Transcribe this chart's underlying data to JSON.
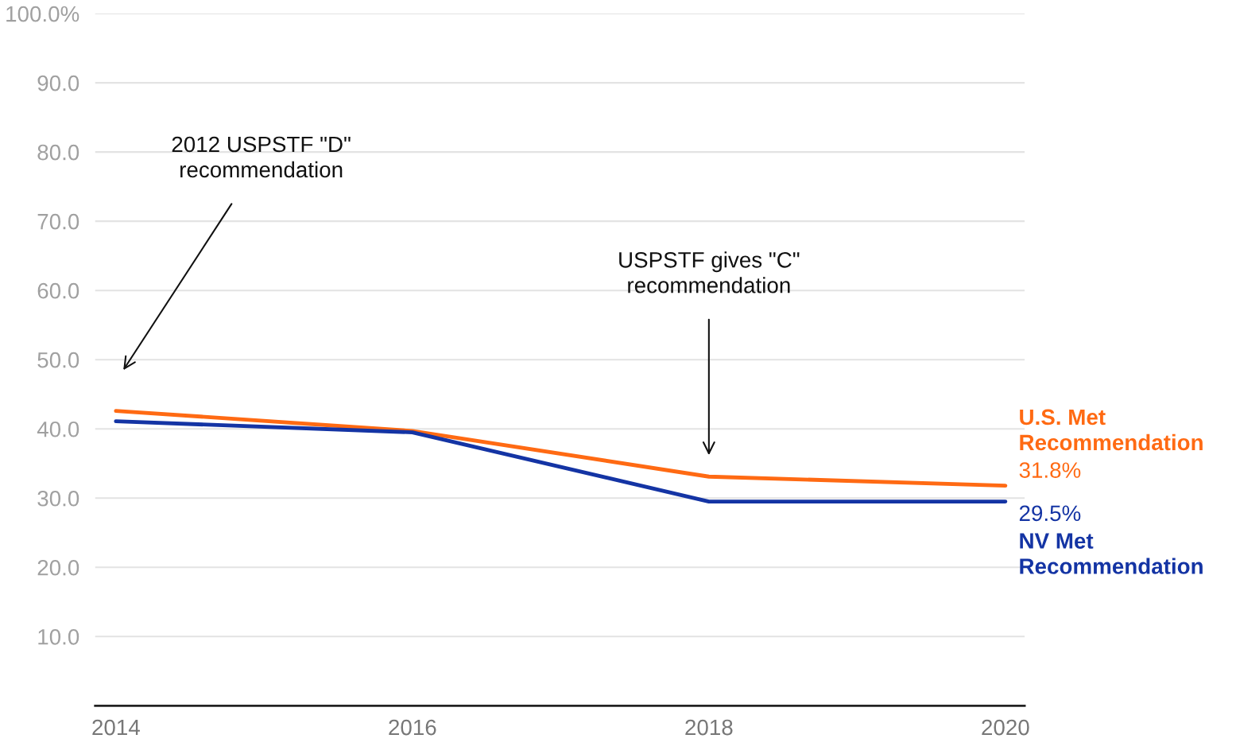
{
  "chart_data": {
    "type": "line",
    "x": [
      2014,
      2016,
      2018,
      2020
    ],
    "series": [
      {
        "name": "U.S. Met\nRecommendation",
        "color": "#ff6a13",
        "values": [
          42.6,
          39.7,
          33.1,
          31.8
        ],
        "value_labels": [
          null,
          null,
          null,
          "31.8%"
        ]
      },
      {
        "name": "NV Met\nRecommendation",
        "color": "#1434a4",
        "values": [
          41.1,
          39.5,
          29.5,
          29.5
        ],
        "value_labels": [
          null,
          null,
          null,
          "29.5%"
        ]
      }
    ],
    "ylim": [
      0,
      100
    ],
    "yticks": [
      {
        "value": 10,
        "label": "10.0"
      },
      {
        "value": 20,
        "label": "20.0"
      },
      {
        "value": 30,
        "label": "30.0"
      },
      {
        "value": 40,
        "label": "40.0"
      },
      {
        "value": 50,
        "label": "50.0"
      },
      {
        "value": 60,
        "label": "60.0"
      },
      {
        "value": 70,
        "label": "70.0"
      },
      {
        "value": 80,
        "label": "80.0"
      },
      {
        "value": 90,
        "label": "90.0"
      },
      {
        "value": 100,
        "label": "100.0%"
      }
    ],
    "xlim": [
      2013.86,
      2020.13
    ],
    "xticks": [
      2014,
      2016,
      2018,
      2020
    ],
    "grid": "y",
    "legend": false,
    "marker": "none",
    "line_style": "solid",
    "annotations": [
      "2012 USPSTF \"D\"\nrecommendation",
      "USPSTF gives \"C\"\nrecommendation"
    ]
  }
}
